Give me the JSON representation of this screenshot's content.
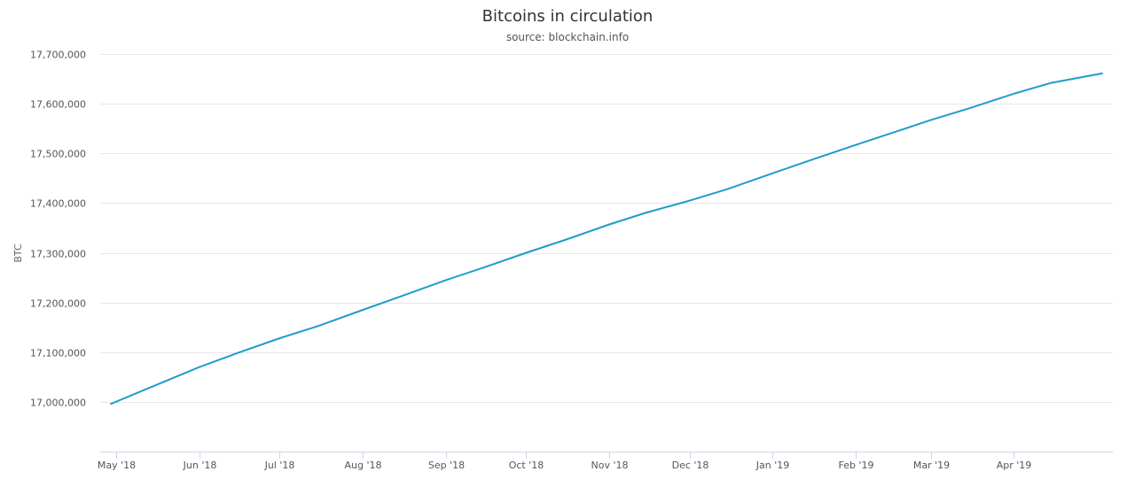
{
  "chart_data": {
    "type": "line",
    "title": "Bitcoins in circulation",
    "subtitle": "source: blockchain.info",
    "xlabel": "",
    "ylabel": "BTC",
    "ylim": [
      16900000,
      17700000
    ],
    "y_ticks": [
      17000000,
      17100000,
      17200000,
      17300000,
      17400000,
      17500000,
      17600000,
      17700000
    ],
    "y_tick_labels": [
      "17,000,000",
      "17,100,000",
      "17,200,000",
      "17,300,000",
      "17,400,000",
      "17,500,000",
      "17,600,000",
      "17,700,000"
    ],
    "xlim": [
      "2018-04-25",
      "2019-05-08"
    ],
    "x_ticks": [
      "2018-05-01",
      "2018-06-01",
      "2018-07-01",
      "2018-08-01",
      "2018-09-01",
      "2018-10-01",
      "2018-11-01",
      "2018-12-01",
      "2019-01-01",
      "2019-02-01",
      "2019-03-01",
      "2019-04-01"
    ],
    "x_tick_labels": [
      "May '18",
      "Jun '18",
      "Jul '18",
      "Aug '18",
      "Sep '18",
      "Oct '18",
      "Nov '18",
      "Dec '18",
      "Jan '19",
      "Feb '19",
      "Mar '19",
      "Apr '19"
    ],
    "grid": true,
    "legend": "none",
    "series": [
      {
        "color": "#1f9dc9",
        "points": [
          {
            "x": "2018-04-29",
            "y": 16996000
          },
          {
            "x": "2018-05-15",
            "y": 17032000
          },
          {
            "x": "2018-06-01",
            "y": 17070000
          },
          {
            "x": "2018-06-15",
            "y": 17098000
          },
          {
            "x": "2018-07-01",
            "y": 17128000
          },
          {
            "x": "2018-07-15",
            "y": 17152000
          },
          {
            "x": "2018-08-01",
            "y": 17185000
          },
          {
            "x": "2018-08-15",
            "y": 17212000
          },
          {
            "x": "2018-09-01",
            "y": 17245000
          },
          {
            "x": "2018-09-15",
            "y": 17270000
          },
          {
            "x": "2018-10-01",
            "y": 17300000
          },
          {
            "x": "2018-10-15",
            "y": 17325000
          },
          {
            "x": "2018-11-01",
            "y": 17357000
          },
          {
            "x": "2018-11-15",
            "y": 17381000
          },
          {
            "x": "2018-12-01",
            "y": 17405000
          },
          {
            "x": "2018-12-15",
            "y": 17428000
          },
          {
            "x": "2019-01-01",
            "y": 17460000
          },
          {
            "x": "2019-01-15",
            "y": 17486000
          },
          {
            "x": "2019-02-01",
            "y": 17517000
          },
          {
            "x": "2019-02-15",
            "y": 17542000
          },
          {
            "x": "2019-03-01",
            "y": 17567000
          },
          {
            "x": "2019-03-15",
            "y": 17590000
          },
          {
            "x": "2019-04-01",
            "y": 17620000
          },
          {
            "x": "2019-04-15",
            "y": 17642000
          },
          {
            "x": "2019-05-04",
            "y": 17661000
          }
        ]
      }
    ]
  },
  "colors": {
    "gridline": "#e6e6e6",
    "axis": "#ccd6eb",
    "text": "#333333"
  }
}
